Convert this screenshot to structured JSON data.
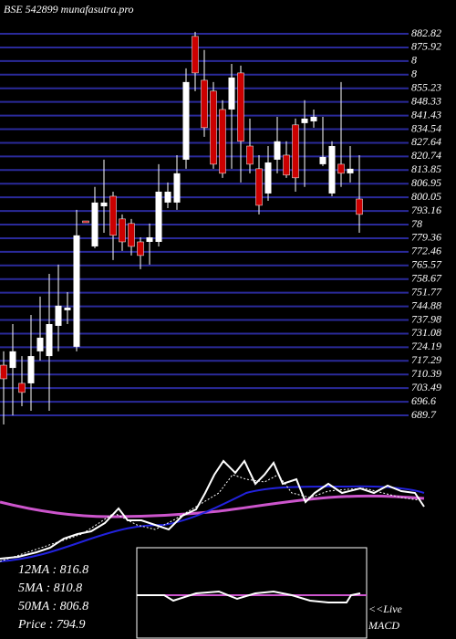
{
  "chart_data": {
    "type": "candlestick",
    "title": "BSE 542899 munafasutra.pro",
    "categories": [
      null,
      null,
      null,
      null,
      null,
      null,
      null,
      null,
      null,
      null,
      null,
      null,
      null,
      null,
      null,
      null,
      null,
      null,
      null,
      null,
      null,
      null,
      null,
      null,
      null,
      null,
      null,
      null,
      null,
      null,
      null,
      null,
      null,
      null,
      null,
      null,
      null,
      null,
      null,
      null
    ],
    "open": [
      715.1,
      713.7,
      705.9,
      705.9,
      722.1,
      719.7,
      735.0,
      742.9,
      724.4,
      788.1,
      775.2,
      795.5,
      800.6,
      789.1,
      786.8,
      777.5,
      777.5,
      777.5,
      797.4,
      797.4,
      819.1,
      881.5,
      859.3,
      853.8,
      844.5,
      844.5,
      863.0,
      826.0,
      814.5,
      802.0,
      819.1,
      821.4,
      836.7,
      837.6,
      838.5,
      816.8,
      802.0,
      816.8,
      812.2,
      799.2
    ],
    "high": [
      722.1,
      735.9,
      719.7,
      740.5,
      749.8,
      761.3,
      766.0,
      752.1,
      793.7,
      788.1,
      805.3,
      819.1,
      802.9,
      791.4,
      789.1,
      779.8,
      786.8,
      816.8,
      807.6,
      821.4,
      865.3,
      883.8,
      874.6,
      858.4,
      849.2,
      867.6,
      866.7,
      839.9,
      821.4,
      826.0,
      840.8,
      828.4,
      839.9,
      849.2,
      844.5,
      840.8,
      828.4,
      858.4,
      826.0,
      821.4
    ],
    "low": [
      685.1,
      689.7,
      694.3,
      692.0,
      717.4,
      692.0,
      722.1,
      735.9,
      722.1,
      787.2,
      774.3,
      782.1,
      768.3,
      772.9,
      770.6,
      763.7,
      766.0,
      775.2,
      794.6,
      793.7,
      814.5,
      853.8,
      830.7,
      814.5,
      809.9,
      814.5,
      807.6,
      812.2,
      791.4,
      798.3,
      812.2,
      809.9,
      802.9,
      805.3,
      835.3,
      815.9,
      800.6,
      805.3,
      807.6,
      782.1
    ],
    "close": [
      708.2,
      722.1,
      701.3,
      719.7,
      729.0,
      735.9,
      745.2,
      744.2,
      780.8,
      787.2,
      797.4,
      797.4,
      780.8,
      777.5,
      775.2,
      770.6,
      779.8,
      802.9,
      802.9,
      812.2,
      858.4,
      863.0,
      835.3,
      816.8,
      812.2,
      860.7,
      828.4,
      816.8,
      796.0,
      817.7,
      828.4,
      811.3,
      809.9,
      839.9,
      840.8,
      820.5,
      826.0,
      812.2,
      814.5,
      791.4
    ],
    "up_color": "#ffffff",
    "down_color": "#cc0000",
    "grid_color": "#2a2a9a",
    "ylim": [
      685.08,
      886.06
    ],
    "yticks": [
      689.7,
      696.6,
      703.49,
      710.39,
      717.29,
      724.19,
      731.08,
      737.98,
      744.88,
      751.77,
      758.67,
      765.57,
      772.46,
      779.36,
      {
        "value": 786.26,
        "label": "78"
      },
      793.16,
      800.05,
      806.95,
      813.85,
      820.74,
      827.64,
      834.54,
      841.43,
      848.33,
      855.23,
      {
        "value": 862.13,
        "label": "8"
      },
      {
        "value": 869.03,
        "label": "8"
      },
      875.92,
      882.82
    ],
    "legend": [
      "12MA : 816.8",
      "5MA : 810.8",
      "50MA : 806.8",
      "Price  : 794.9"
    ],
    "macd_label": [
      "<<Live",
      "MACD"
    ]
  }
}
